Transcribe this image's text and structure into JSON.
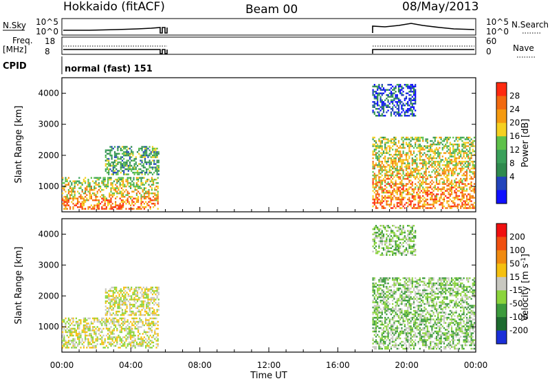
{
  "header": {
    "station": "Hokkaido (fitACF)",
    "beam": "Beam 00",
    "date": "08/May/2013"
  },
  "top_panels": {
    "nsky_label": "N.Sky",
    "nsky_ticks": [
      "10^5",
      "10^0"
    ],
    "nsearch_label": "N.Search",
    "nsearch_ticks": [
      "10^5",
      "10^0"
    ],
    "freq_label": "Freq.",
    "freq_unit": "[MHz]",
    "freq_ticks": [
      "18",
      "8"
    ],
    "nave_label": "Nave",
    "nave_ticks": [
      "60",
      "0"
    ],
    "cpid_label": "CPID",
    "cpid_text": "normal (fast) 151"
  },
  "time_axis": {
    "label": "Time UT",
    "ticks": [
      "00:00",
      "04:00",
      "08:00",
      "12:00",
      "16:00",
      "20:00",
      "00:00"
    ]
  },
  "chart_data": [
    {
      "type": "heatmap",
      "quantity": "Power",
      "ylabel": "Slant Range [km]",
      "xlabel": "",
      "colorbar_label": "Power [dB]",
      "colorbar_ticks": [
        "28",
        "24",
        "20",
        "16",
        "12",
        "8",
        "4"
      ],
      "colors": [
        "#1010ff",
        "#2244bb",
        "#2f8a4e",
        "#3aa05a",
        "#5ec14a",
        "#f5d020",
        "#f59a10",
        "#f26a10",
        "#ff2a10"
      ],
      "yticks": [
        "4000",
        "3000",
        "2000",
        "1000"
      ],
      "ylim": [
        180,
        4500
      ],
      "xlim_hours": [
        0,
        24
      ],
      "data_gap_hours": [
        6.1,
        18.0
      ],
      "regions": [
        {
          "t": [
            0.0,
            5.6
          ],
          "range_km": [
            300,
            1300
          ],
          "level": "high"
        },
        {
          "t": [
            2.5,
            5.6
          ],
          "range_km": [
            1400,
            2300
          ],
          "level": "mid"
        },
        {
          "t": [
            18.0,
            23.9
          ],
          "range_km": [
            300,
            2600
          ],
          "level": "high"
        },
        {
          "t": [
            18.0,
            20.5
          ],
          "range_km": [
            3300,
            4300
          ],
          "level": "low"
        }
      ]
    },
    {
      "type": "heatmap",
      "quantity": "Velocity",
      "ylabel": "Slant Range [km]",
      "xlabel": "Time UT",
      "colorbar_label": "Velocity [m s-1]",
      "colorbar_ticks": [
        "200",
        "100",
        "50",
        "15",
        "-15",
        "-50",
        "-100",
        "-200"
      ],
      "colors": [
        "#1a2fd8",
        "#1d6a2f",
        "#3c9a3c",
        "#8bd43c",
        "#c8c8c0",
        "#f5c010",
        "#f08a10",
        "#f05010",
        "#f01010"
      ],
      "yticks": [
        "4000",
        "3000",
        "2000",
        "1000"
      ],
      "ylim": [
        180,
        4500
      ],
      "xlim_hours": [
        0,
        24
      ],
      "data_gap_hours": [
        6.1,
        18.0
      ],
      "regions": [
        {
          "t": [
            0.0,
            5.6
          ],
          "range_km": [
            300,
            1300
          ],
          "level": "near-zero"
        },
        {
          "t": [
            2.5,
            5.6
          ],
          "range_km": [
            1400,
            2300
          ],
          "level": "near-zero"
        },
        {
          "t": [
            18.0,
            23.9
          ],
          "range_km": [
            300,
            2600
          ],
          "level": "positive"
        },
        {
          "t": [
            18.0,
            20.5
          ],
          "range_km": [
            3300,
            4300
          ],
          "level": "positive"
        }
      ]
    }
  ]
}
